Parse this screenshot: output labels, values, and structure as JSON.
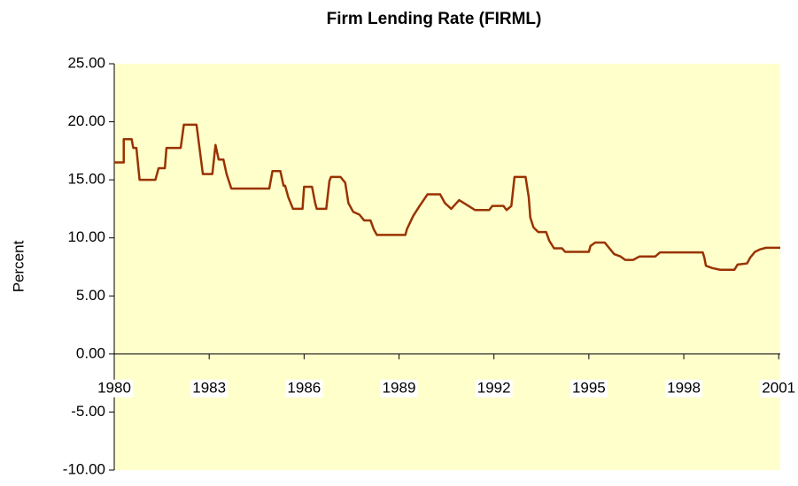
{
  "chart_data": {
    "type": "line",
    "title": "Firm Lending Rate (FIRML)",
    "y_label": "Percent",
    "x": [
      1980.0,
      1980.3,
      1980.3,
      1980.55,
      1980.6,
      1980.7,
      1980.8,
      1981.3,
      1981.4,
      1981.6,
      1981.65,
      1982.1,
      1982.2,
      1982.6,
      1982.8,
      1983.1,
      1983.2,
      1983.3,
      1983.45,
      1983.55,
      1983.7,
      1984.9,
      1985.0,
      1985.25,
      1985.35,
      1985.4,
      1985.5,
      1985.65,
      1985.95,
      1986.0,
      1986.25,
      1986.35,
      1986.4,
      1986.7,
      1986.8,
      1986.85,
      1987.15,
      1987.3,
      1987.4,
      1987.55,
      1987.75,
      1987.9,
      1988.1,
      1988.2,
      1988.3,
      1989.2,
      1989.25,
      1989.45,
      1989.65,
      1989.9,
      1990.3,
      1990.45,
      1990.65,
      1990.9,
      1991.2,
      1991.4,
      1991.85,
      1991.95,
      1992.3,
      1992.4,
      1992.55,
      1992.65,
      1993.0,
      1993.1,
      1993.15,
      1993.25,
      1993.4,
      1993.65,
      1993.75,
      1993.9,
      1994.15,
      1994.25,
      1995.0,
      1995.05,
      1995.2,
      1995.5,
      1995.65,
      1995.8,
      1996.0,
      1996.15,
      1996.4,
      1996.6,
      1997.1,
      1997.25,
      1998.6,
      1998.65,
      1998.7,
      1998.9,
      1999.15,
      1999.6,
      1999.7,
      2000.0,
      2000.1,
      2000.25,
      2000.4,
      2000.6,
      2001.05
    ],
    "series": [
      {
        "name": "FIRML",
        "color": "#993300",
        "values": [
          16.5,
          16.5,
          18.5,
          18.5,
          17.75,
          17.75,
          15.0,
          15.0,
          16.0,
          16.0,
          17.75,
          17.75,
          19.75,
          19.75,
          15.5,
          15.5,
          18.0,
          16.75,
          16.75,
          15.5,
          14.25,
          14.25,
          15.75,
          15.75,
          14.5,
          14.5,
          13.5,
          12.5,
          12.5,
          14.4,
          14.4,
          13.0,
          12.5,
          12.5,
          14.9,
          15.25,
          15.25,
          14.75,
          13.0,
          12.25,
          12.0,
          11.5,
          11.5,
          10.75,
          10.25,
          10.25,
          10.75,
          11.9,
          12.75,
          13.75,
          13.75,
          13.0,
          12.5,
          13.25,
          12.75,
          12.4,
          12.4,
          12.75,
          12.75,
          12.4,
          12.75,
          15.25,
          15.25,
          13.5,
          11.75,
          10.9,
          10.5,
          10.5,
          9.75,
          9.1,
          9.1,
          8.8,
          8.8,
          9.3,
          9.6,
          9.6,
          9.1,
          8.6,
          8.4,
          8.1,
          8.1,
          8.4,
          8.4,
          8.75,
          8.75,
          8.3,
          7.6,
          7.4,
          7.25,
          7.25,
          7.7,
          7.8,
          8.3,
          8.8,
          9.0,
          9.15,
          9.15
        ]
      }
    ],
    "xlim": [
      1980,
      2001.05
    ],
    "xticks": [
      1980,
      1983,
      1986,
      1989,
      1992,
      1995,
      1998,
      2001
    ],
    "ylim": [
      -10,
      25
    ],
    "yticks": [
      {
        "value": -10,
        "label": "-10.00"
      },
      {
        "value": -5,
        "label": "-5.00"
      },
      {
        "value": 0,
        "label": "0.00"
      },
      {
        "value": 5,
        "label": "5.00"
      },
      {
        "value": 10,
        "label": "10.00"
      },
      {
        "value": 15,
        "label": "15.00"
      },
      {
        "value": 20,
        "label": "20.00"
      },
      {
        "value": 25,
        "label": "25.00"
      }
    ],
    "plot_background": "#ffffcc"
  }
}
